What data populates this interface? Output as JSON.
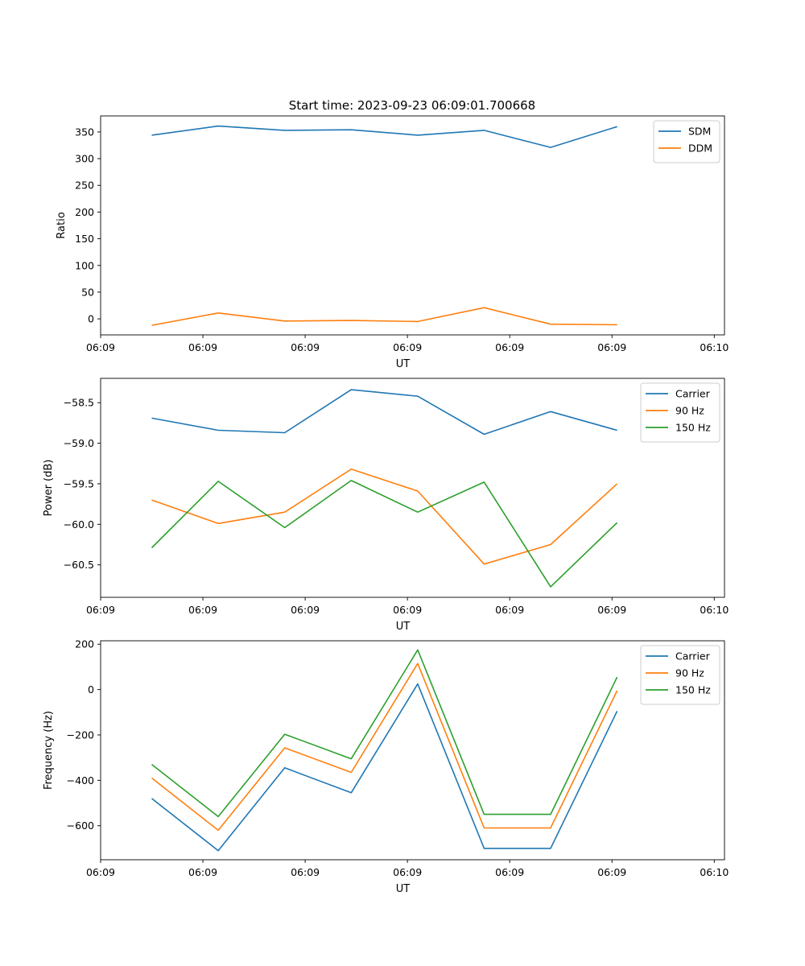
{
  "figure": {
    "title": "Start time: 2023-09-23 06:09:01.700668"
  },
  "chart_data": [
    {
      "type": "line",
      "xlabel": "UT",
      "ylabel": "Ratio",
      "xlim": [
        0,
        6.1
      ],
      "ylim": [
        -30,
        380
      ],
      "x": [
        0.5,
        1.15,
        1.8,
        2.45,
        3.1,
        3.75,
        4.4,
        5.05
      ],
      "xticks": [
        0.0,
        1.0,
        2.0,
        3.0,
        4.0,
        5.0,
        6.0
      ],
      "xticklabels": [
        "06:09",
        "06:09",
        "06:09",
        "06:09",
        "06:09",
        "06:09",
        "06:10"
      ],
      "yticks": [
        0,
        50,
        100,
        150,
        200,
        250,
        300,
        350
      ],
      "yticklabels": [
        "0",
        "50",
        "100",
        "150",
        "200",
        "250",
        "300",
        "350"
      ],
      "legend_position": "top-right",
      "series": [
        {
          "name": "SDM",
          "color": "#1f77b4",
          "values": [
            344,
            361,
            353,
            354,
            344,
            353,
            321,
            360
          ]
        },
        {
          "name": "DDM",
          "color": "#ff7f0e",
          "values": [
            -12,
            11,
            -4,
            -3,
            -5,
            21,
            -10,
            -11
          ]
        }
      ]
    },
    {
      "type": "line",
      "xlabel": "UT",
      "ylabel": "Power (dB)",
      "xlim": [
        0,
        6.1
      ],
      "ylim": [
        -60.9,
        -58.2
      ],
      "x": [
        0.5,
        1.15,
        1.8,
        2.45,
        3.1,
        3.75,
        4.4,
        5.05
      ],
      "xticks": [
        0.0,
        1.0,
        2.0,
        3.0,
        4.0,
        5.0,
        6.0
      ],
      "xticklabels": [
        "06:09",
        "06:09",
        "06:09",
        "06:09",
        "06:09",
        "06:09",
        "06:10"
      ],
      "yticks": [
        -58.5,
        -59.0,
        -59.5,
        -60.0,
        -60.5
      ],
      "yticklabels": [
        "−58.5",
        "−59.0",
        "−59.5",
        "−60.0",
        "−60.5"
      ],
      "legend_position": "top-right",
      "series": [
        {
          "name": "Carrier",
          "color": "#1f77b4",
          "values": [
            -58.69,
            -58.84,
            -58.87,
            -58.34,
            -58.42,
            -58.89,
            -58.61,
            -58.84
          ]
        },
        {
          "name": "90 Hz",
          "color": "#ff7f0e",
          "values": [
            -59.7,
            -59.99,
            -59.85,
            -59.32,
            -59.59,
            -60.49,
            -60.25,
            -59.5
          ]
        },
        {
          "name": "150 Hz",
          "color": "#2ca02c",
          "values": [
            -60.29,
            -59.47,
            -60.04,
            -59.46,
            -59.85,
            -59.48,
            -60.77,
            -59.98
          ]
        }
      ]
    },
    {
      "type": "line",
      "xlabel": "UT",
      "ylabel": "Frequency (Hz)",
      "xlim": [
        0,
        6.1
      ],
      "ylim": [
        -750,
        215
      ],
      "x": [
        0.5,
        1.15,
        1.8,
        2.45,
        3.1,
        3.75,
        4.4,
        5.05
      ],
      "xticks": [
        0.0,
        1.0,
        2.0,
        3.0,
        4.0,
        5.0,
        6.0
      ],
      "xticklabels": [
        "06:09",
        "06:09",
        "06:09",
        "06:09",
        "06:09",
        "06:09",
        "06:10"
      ],
      "yticks": [
        200,
        0,
        -200,
        -400,
        -600
      ],
      "yticklabels": [
        "200",
        "0",
        "−200",
        "−400",
        "−600"
      ],
      "legend_position": "top-right",
      "series": [
        {
          "name": "Carrier",
          "color": "#1f77b4",
          "values": [
            -480,
            -710,
            -345,
            -455,
            25,
            -700,
            -700,
            -95
          ]
        },
        {
          "name": "90 Hz",
          "color": "#ff7f0e",
          "values": [
            -390,
            -620,
            -257,
            -365,
            115,
            -610,
            -610,
            -5
          ]
        },
        {
          "name": "150 Hz",
          "color": "#2ca02c",
          "values": [
            -330,
            -560,
            -197,
            -305,
            175,
            -550,
            -550,
            55
          ]
        }
      ]
    }
  ]
}
